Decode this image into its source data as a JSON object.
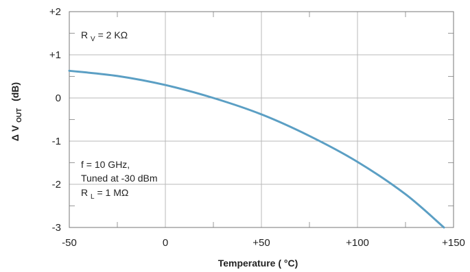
{
  "chart_data": {
    "type": "line",
    "title": "",
    "xlabel": "Temperature ( °C)",
    "ylabel_prefix": "Δ V",
    "ylabel_sub": "OUT",
    "ylabel_suffix": "(dB)",
    "xlim": [
      -50,
      150
    ],
    "ylim": [
      -3,
      2
    ],
    "grid": true,
    "x_ticks": [
      {
        "value": -50,
        "label": "-50"
      },
      {
        "value": 0,
        "label": "0"
      },
      {
        "value": 50,
        "label": "+50"
      },
      {
        "value": 100,
        "label": "+100"
      },
      {
        "value": 150,
        "label": "+150"
      }
    ],
    "y_ticks": [
      {
        "value": 2,
        "label": "+2"
      },
      {
        "value": 1,
        "label": "+1"
      },
      {
        "value": 0,
        "label": "0"
      },
      {
        "value": -1,
        "label": "-1"
      },
      {
        "value": -2,
        "label": "-2"
      },
      {
        "value": -3,
        "label": "-3"
      }
    ],
    "series": [
      {
        "color": "#5b9fc4",
        "x": [
          -50,
          -25,
          0,
          25,
          50,
          75,
          100,
          125,
          145
        ],
        "y": [
          0.63,
          0.51,
          0.3,
          0.0,
          -0.38,
          -0.88,
          -1.48,
          -2.23,
          -3.0
        ]
      }
    ],
    "annotations": {
      "rv": {
        "main": "R",
        "sub": "V",
        "rest": " = 2 KΩ"
      },
      "cond_line1": "f = 10 GHz,",
      "cond_line2": "Tuned at -30 dBm",
      "rl": {
        "main": "R",
        "sub": "L",
        "rest": " = 1 MΩ"
      }
    }
  }
}
